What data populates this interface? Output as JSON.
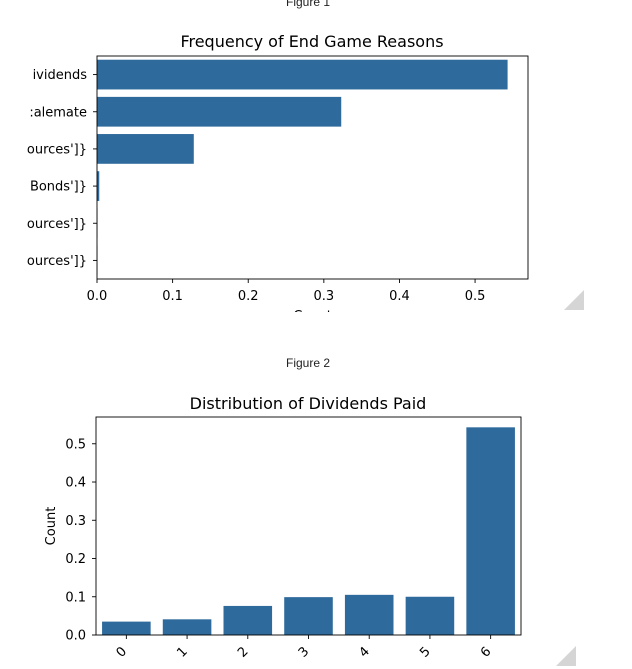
{
  "figures": {
    "figure1_label": "Figure 1",
    "figure2_label": "Figure 2"
  },
  "colors": {
    "bar": "#2e6a9b",
    "axis": "#000000",
    "background": "#ffffff"
  },
  "chart_data": [
    {
      "type": "bar",
      "orientation": "horizontal",
      "title": "Frequency of End Game Reasons",
      "xlabel": "Count",
      "ylabel": "",
      "categories": [
        "ividends",
        ":alemate",
        "ources']}",
        "Bonds']}",
        "ources']}",
        "ources']}"
      ],
      "values": [
        0.543,
        0.323,
        0.128,
        0.003,
        0.0005,
        0.0005
      ],
      "xlim": [
        0,
        0.57
      ],
      "xticks": [
        "0.0",
        "0.1",
        "0.2",
        "0.3",
        "0.4",
        "0.5"
      ],
      "grid": false
    },
    {
      "type": "bar",
      "title": "Distribution of Dividends Paid",
      "xlabel": "",
      "ylabel": "Count",
      "categories": [
        "0",
        "1",
        "2",
        "3",
        "4",
        "5",
        "6"
      ],
      "values": [
        0.035,
        0.041,
        0.076,
        0.099,
        0.105,
        0.1,
        0.543
      ],
      "ylim": [
        0,
        0.57
      ],
      "yticks": [
        "0.0",
        "0.1",
        "0.2",
        "0.3",
        "0.4",
        "0.5"
      ],
      "grid": false
    }
  ]
}
